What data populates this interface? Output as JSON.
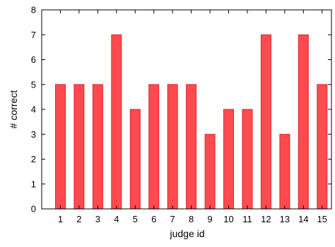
{
  "chart_data": {
    "type": "bar",
    "categories": [
      "1",
      "2",
      "3",
      "4",
      "5",
      "6",
      "7",
      "8",
      "9",
      "10",
      "11",
      "12",
      "13",
      "14",
      "15"
    ],
    "values": [
      5,
      5,
      5,
      7,
      4,
      5,
      5,
      5,
      3,
      4,
      4,
      7,
      3,
      7,
      5
    ],
    "title": "",
    "xlabel": "judge id",
    "ylabel": "# correct",
    "ylim": [
      0,
      8
    ],
    "yticks": [
      "0",
      "1",
      "2",
      "3",
      "4",
      "5",
      "6",
      "7",
      "8"
    ],
    "grid": false,
    "bar_fill": "#ff4a4f",
    "bar_stroke": "#d8262b"
  }
}
